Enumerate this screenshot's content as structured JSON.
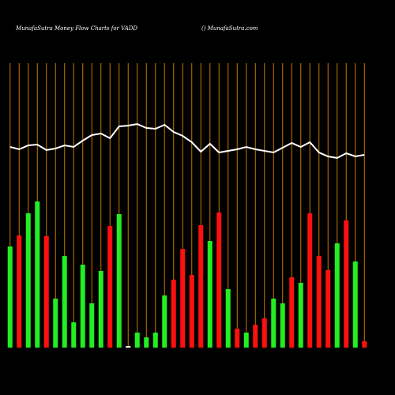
{
  "chart_data": {
    "type": "bar",
    "title": "MunafaSutra  Money Flow  Charts for VADD",
    "subtitle": "() MunafaSutra.com",
    "background": "#000000",
    "grid": true,
    "grid_color": "#c87800",
    "values": [
      128,
      142,
      170,
      185,
      141,
      62,
      116,
      32,
      105,
      56,
      97,
      154,
      169,
      2,
      19,
      13,
      19,
      66,
      86,
      125,
      92,
      155,
      135,
      171,
      74,
      24,
      19,
      29,
      37,
      62,
      56,
      89,
      82,
      170,
      116,
      98,
      132,
      161,
      109,
      8
    ],
    "colors": [
      "#22ee22",
      "#ff1010",
      "#22ee22",
      "#22ee22",
      "#ff1010",
      "#22ee22",
      "#22ee22",
      "#22ee22",
      "#22ee22",
      "#22ee22",
      "#22ee22",
      "#ff1010",
      "#22ee22",
      "#ffffff",
      "#22ee22",
      "#22ee22",
      "#22ee22",
      "#22ee22",
      "#ff1010",
      "#ff1010",
      "#ff1010",
      "#ff1010",
      "#22ee22",
      "#ff1010",
      "#22ee22",
      "#ff1010",
      "#22ee22",
      "#ff1010",
      "#ff1010",
      "#22ee22",
      "#22ee22",
      "#ff1010",
      "#22ee22",
      "#ff1010",
      "#ff1010",
      "#ff1010",
      "#22ee22",
      "#ff1010",
      "#22ee22",
      "#ff1010"
    ],
    "line": {
      "color": "#ffffff",
      "values": [
        254,
        251,
        256,
        257,
        250,
        252,
        256,
        254,
        262,
        269,
        271,
        265,
        280,
        281,
        283,
        278,
        277,
        282,
        273,
        268,
        260,
        248,
        258,
        247,
        249,
        251,
        254,
        251,
        249,
        247,
        253,
        259,
        254,
        260,
        247,
        242,
        240,
        246,
        242,
        244
      ]
    },
    "ylim": [
      0,
      360
    ]
  }
}
